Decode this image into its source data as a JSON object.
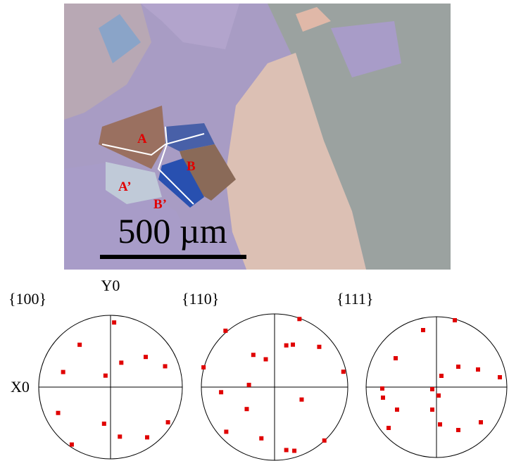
{
  "micrograph": {
    "grain_labels": [
      "A",
      "B",
      "A’",
      "B’"
    ],
    "scale_bar": "500 µm"
  },
  "pole_figures": {
    "axis_y": "Y0",
    "axis_x": "X0",
    "figures": [
      {
        "title": "{100}",
        "points": [
          [
            0.05,
            0.9
          ],
          [
            -0.43,
            0.59
          ],
          [
            -0.66,
            0.21
          ],
          [
            0.15,
            0.34
          ],
          [
            0.49,
            0.42
          ],
          [
            0.76,
            0.29
          ],
          [
            -0.07,
            0.16
          ],
          [
            -0.73,
            -0.36
          ],
          [
            -0.09,
            -0.51
          ],
          [
            0.13,
            -0.69
          ],
          [
            0.51,
            -0.7
          ],
          [
            0.8,
            -0.49
          ],
          [
            -0.54,
            -0.8
          ]
        ]
      },
      {
        "title": "{110}",
        "points": [
          [
            0.34,
            0.93
          ],
          [
            -0.67,
            0.77
          ],
          [
            -0.29,
            0.44
          ],
          [
            -0.12,
            0.38
          ],
          [
            0.16,
            0.57
          ],
          [
            0.25,
            0.58
          ],
          [
            0.61,
            0.55
          ],
          [
            0.94,
            0.21
          ],
          [
            -0.97,
            0.27
          ],
          [
            -0.35,
            0.03
          ],
          [
            -0.73,
            -0.07
          ],
          [
            0.37,
            -0.17
          ],
          [
            -0.38,
            -0.3
          ],
          [
            -0.66,
            -0.61
          ],
          [
            -0.18,
            -0.7
          ],
          [
            0.16,
            -0.86
          ],
          [
            0.27,
            -0.87
          ],
          [
            0.68,
            -0.73
          ]
        ]
      },
      {
        "title": "{111}",
        "points": [
          [
            0.26,
            0.95
          ],
          [
            -0.19,
            0.81
          ],
          [
            -0.58,
            0.41
          ],
          [
            0.07,
            0.16
          ],
          [
            0.31,
            0.29
          ],
          [
            0.59,
            0.25
          ],
          [
            0.9,
            0.14
          ],
          [
            -0.77,
            -0.02
          ],
          [
            -0.76,
            -0.15
          ],
          [
            -0.06,
            -0.03
          ],
          [
            0.03,
            -0.12
          ],
          [
            -0.06,
            -0.32
          ],
          [
            -0.56,
            -0.32
          ],
          [
            0.05,
            -0.53
          ],
          [
            0.31,
            -0.61
          ],
          [
            0.63,
            -0.5
          ],
          [
            -0.68,
            -0.58
          ]
        ]
      }
    ]
  }
}
